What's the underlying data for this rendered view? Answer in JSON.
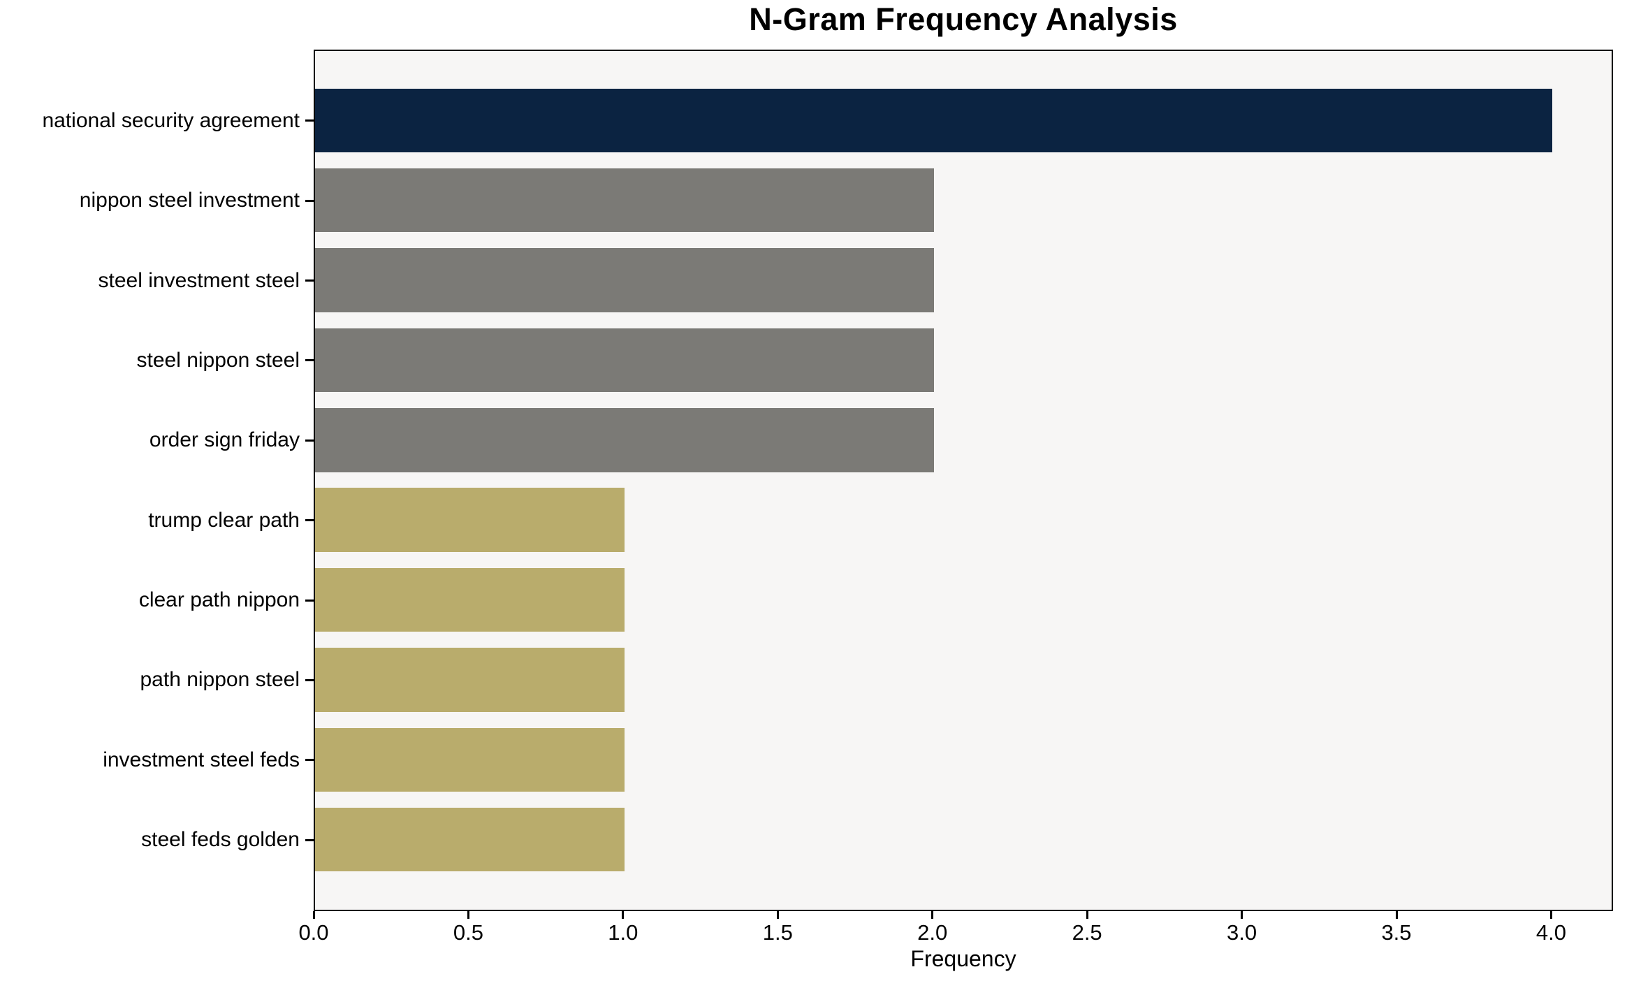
{
  "chart_data": {
    "type": "bar",
    "orientation": "horizontal",
    "title": "N-Gram Frequency Analysis",
    "xlabel": "Frequency",
    "ylabel": "",
    "categories": [
      "national security agreement",
      "nippon steel investment",
      "steel investment steel",
      "steel nippon steel",
      "order sign friday",
      "trump clear path",
      "clear path nippon",
      "path nippon steel",
      "investment steel feds",
      "steel feds golden"
    ],
    "values": [
      4,
      2,
      2,
      2,
      2,
      1,
      1,
      1,
      1,
      1
    ],
    "bar_colors": [
      "#0b2341",
      "#7b7a76",
      "#7b7a76",
      "#7b7a76",
      "#7b7a76",
      "#b9ac6c",
      "#b9ac6c",
      "#b9ac6c",
      "#b9ac6c",
      "#b9ac6c"
    ],
    "xticks": [
      "0.0",
      "0.5",
      "1.0",
      "1.5",
      "2.0",
      "2.5",
      "3.0",
      "3.5",
      "4.0"
    ],
    "xtick_values": [
      0,
      0.5,
      1,
      1.5,
      2,
      2.5,
      3,
      3.5,
      4
    ],
    "xlim": [
      0,
      4.2
    ],
    "grid": false,
    "legend": null,
    "colors": {
      "plot_background": "#f7f6f5",
      "page_background": "#ffffff",
      "axis": "#000000",
      "top_bar": "#0b2341",
      "mid_bar": "#7b7a76",
      "low_bar": "#b9ac6c"
    }
  }
}
